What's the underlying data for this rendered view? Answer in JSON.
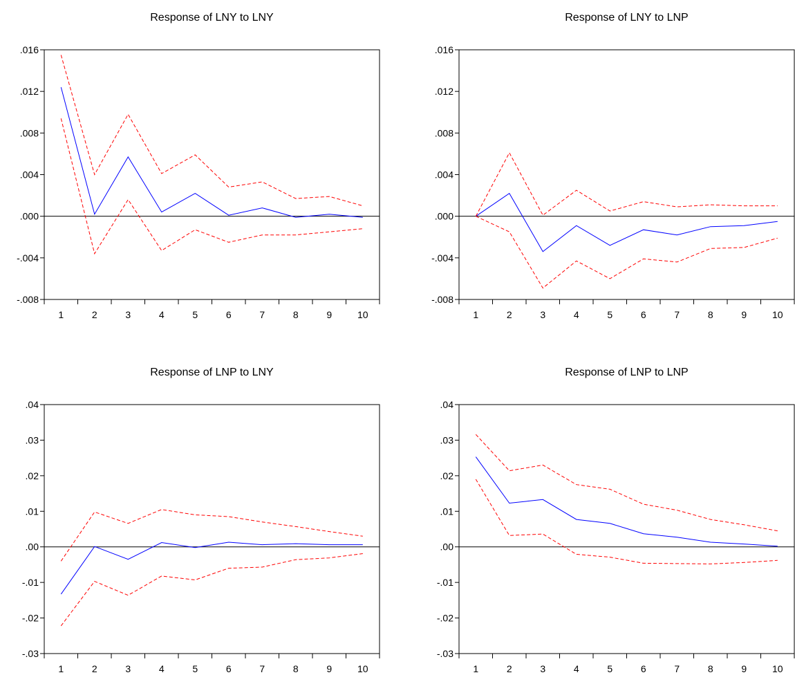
{
  "chart_data": [
    {
      "type": "line",
      "title": "Response of LNY to LNY",
      "x": [
        1,
        2,
        3,
        4,
        5,
        6,
        7,
        8,
        9,
        10
      ],
      "ylim": [
        -0.008,
        0.016
      ],
      "yticks": [
        ".016",
        ".012",
        ".008",
        ".004",
        ".000",
        "-.004",
        "-.008"
      ],
      "yticks_values": [
        0.016,
        0.012,
        0.008,
        0.004,
        0.0,
        -0.004,
        -0.008
      ],
      "series": [
        {
          "values": [
            0.0124,
            0.0002,
            0.0057,
            0.0004,
            0.0022,
            0.0001,
            0.0008,
            -0.0001,
            0.0002,
            -0.0001
          ],
          "color": "#0000ff",
          "style": "solid"
        },
        {
          "values": [
            0.0155,
            0.004,
            0.0098,
            0.0041,
            0.0059,
            0.0028,
            0.0033,
            0.0017,
            0.0019,
            0.001
          ],
          "color": "#ff0000",
          "style": "dashed"
        },
        {
          "values": [
            0.0094,
            -0.0036,
            0.0016,
            -0.0033,
            -0.0013,
            -0.0025,
            -0.0018,
            -0.0018,
            -0.0015,
            -0.0012
          ],
          "color": "#ff0000",
          "style": "dashed"
        }
      ],
      "zero_line": true
    },
    {
      "type": "line",
      "title": "Response of LNY to LNP",
      "x": [
        1,
        2,
        3,
        4,
        5,
        6,
        7,
        8,
        9,
        10
      ],
      "ylim": [
        -0.008,
        0.016
      ],
      "yticks": [
        ".016",
        ".012",
        ".008",
        ".004",
        ".000",
        "-.004",
        "-.008"
      ],
      "yticks_values": [
        0.016,
        0.012,
        0.008,
        0.004,
        0.0,
        -0.004,
        -0.008
      ],
      "series": [
        {
          "values": [
            0.0,
            0.0022,
            -0.0034,
            -0.0009,
            -0.0028,
            -0.0013,
            -0.0018,
            -0.001,
            -0.0009,
            -0.0005
          ],
          "color": "#0000ff",
          "style": "solid"
        },
        {
          "values": [
            0.0,
            0.0061,
            0.0001,
            0.0025,
            0.0005,
            0.0014,
            0.0009,
            0.0011,
            0.001,
            0.001
          ],
          "color": "#ff0000",
          "style": "dashed"
        },
        {
          "values": [
            0.0,
            -0.0015,
            -0.0069,
            -0.0043,
            -0.006,
            -0.0041,
            -0.0044,
            -0.0031,
            -0.003,
            -0.0021
          ],
          "color": "#ff0000",
          "style": "dashed"
        }
      ],
      "zero_line": true
    },
    {
      "type": "line",
      "title": "Response of LNP to LNY",
      "x": [
        1,
        2,
        3,
        4,
        5,
        6,
        7,
        8,
        9,
        10
      ],
      "ylim": [
        -0.03,
        0.04
      ],
      "yticks": [
        ".04",
        ".03",
        ".02",
        ".01",
        ".00",
        "-.01",
        "-.02",
        "-.03"
      ],
      "yticks_values": [
        0.04,
        0.03,
        0.02,
        0.01,
        0.0,
        -0.01,
        -0.02,
        -0.03
      ],
      "series": [
        {
          "values": [
            -0.0133,
            0.0001,
            -0.0035,
            0.0012,
            -0.0002,
            0.0013,
            0.0006,
            0.0009,
            0.0006,
            0.0006
          ],
          "color": "#0000ff",
          "style": "solid"
        },
        {
          "values": [
            -0.004,
            0.0098,
            0.0066,
            0.0105,
            0.009,
            0.0085,
            0.007,
            0.0057,
            0.0043,
            0.003
          ],
          "color": "#ff0000",
          "style": "dashed"
        },
        {
          "values": [
            -0.0222,
            -0.0097,
            -0.0136,
            -0.0082,
            -0.0093,
            -0.006,
            -0.0057,
            -0.0036,
            -0.0031,
            -0.0019
          ],
          "color": "#ff0000",
          "style": "dashed"
        }
      ],
      "zero_line": true
    },
    {
      "type": "line",
      "title": "Response of LNP to LNP",
      "x": [
        1,
        2,
        3,
        4,
        5,
        6,
        7,
        8,
        9,
        10
      ],
      "ylim": [
        -0.03,
        0.04
      ],
      "yticks": [
        ".04",
        ".03",
        ".02",
        ".01",
        ".00",
        "-.01",
        "-.02",
        "-.03"
      ],
      "yticks_values": [
        0.04,
        0.03,
        0.02,
        0.01,
        0.0,
        -0.01,
        -0.02,
        -0.03
      ],
      "series": [
        {
          "values": [
            0.0253,
            0.0123,
            0.0133,
            0.0077,
            0.0066,
            0.0037,
            0.0027,
            0.0013,
            0.0008,
            0.0002
          ],
          "color": "#0000ff",
          "style": "solid"
        },
        {
          "values": [
            0.0316,
            0.0214,
            0.023,
            0.0175,
            0.0162,
            0.012,
            0.0103,
            0.0077,
            0.0062,
            0.0045
          ],
          "color": "#ff0000",
          "style": "dashed"
        },
        {
          "values": [
            0.019,
            0.0032,
            0.0036,
            -0.0021,
            -0.0029,
            -0.0046,
            -0.0047,
            -0.0048,
            -0.0044,
            -0.0038
          ],
          "color": "#ff0000",
          "style": "dashed"
        }
      ],
      "zero_line": true
    }
  ]
}
